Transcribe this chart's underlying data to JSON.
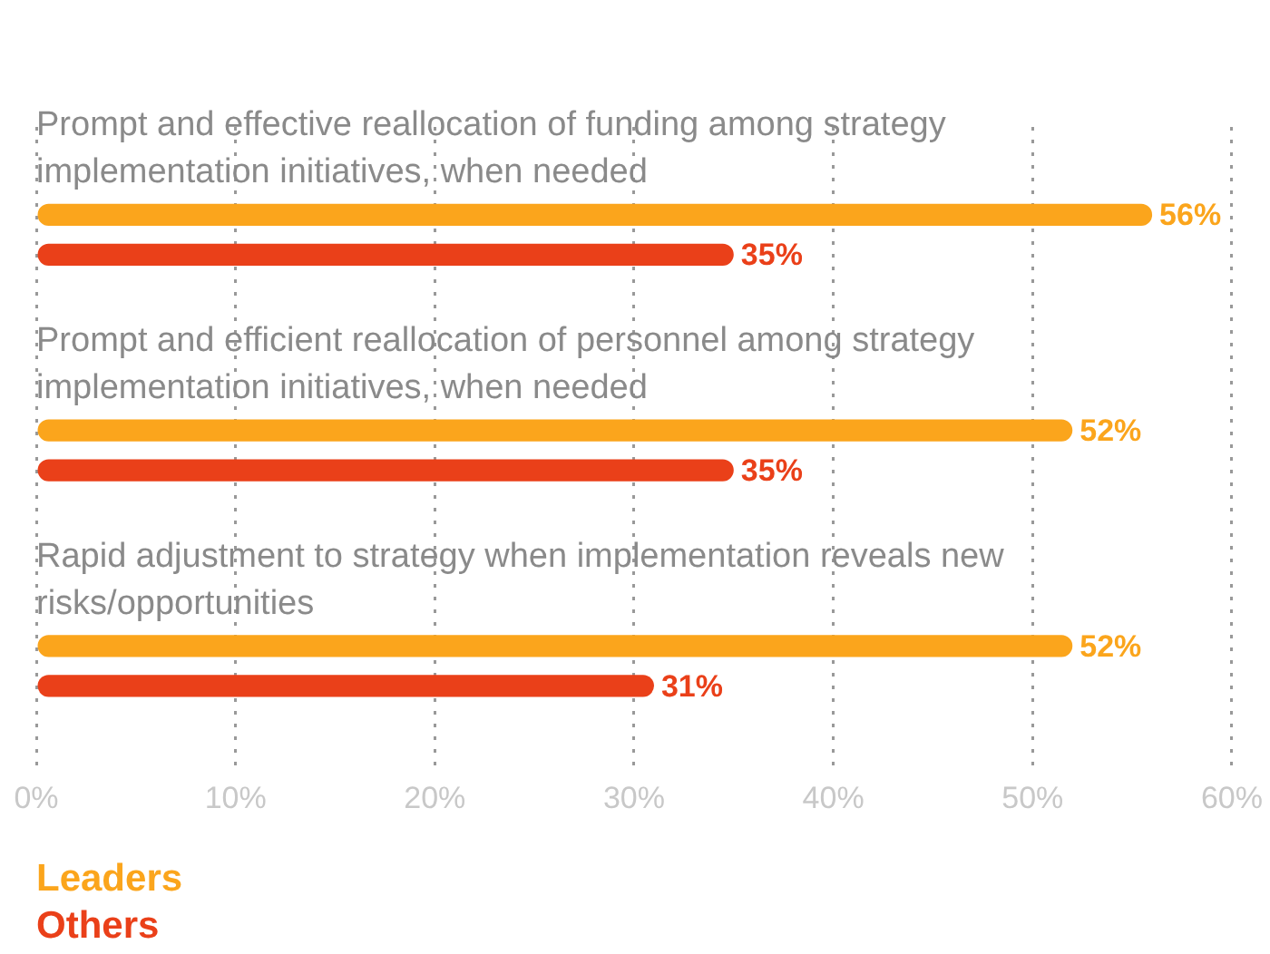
{
  "chart_data": {
    "type": "bar",
    "orientation": "horizontal",
    "categories": [
      "Prompt and effective reallocation of funding among strategy implementation initiatives, when needed",
      "Prompt and efficient reallocation of personnel among strategy implementation initiatives, when needed",
      "Rapid adjustment to strategy when implementation reveals new risks/opportunities"
    ],
    "series": [
      {
        "name": "Leaders",
        "color": "#fba51c",
        "values": [
          56,
          52,
          52
        ],
        "value_labels": [
          "56%",
          "52%",
          "52%"
        ]
      },
      {
        "name": "Others",
        "color": "#ea4019",
        "values": [
          35,
          35,
          31
        ],
        "value_labels": [
          "35%",
          "35%",
          "31%"
        ]
      }
    ],
    "xlim": [
      0,
      60
    ],
    "xticks": [
      {
        "value": 0,
        "label": "0%"
      },
      {
        "value": 10,
        "label": "10%"
      },
      {
        "value": 20,
        "label": "20%"
      },
      {
        "value": 30,
        "label": "30%"
      },
      {
        "value": 40,
        "label": "40%"
      },
      {
        "value": 50,
        "label": "50%"
      },
      {
        "value": 60,
        "label": "60%"
      }
    ],
    "grid": "x",
    "legend": "bottom"
  }
}
